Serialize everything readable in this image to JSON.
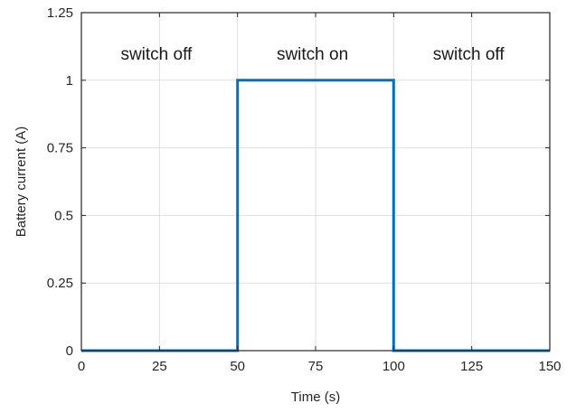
{
  "chart_data": {
    "type": "line",
    "title": "",
    "xlabel": "Time (s)",
    "ylabel": "Battery current (A)",
    "xlim": [
      0,
      150
    ],
    "ylim": [
      0,
      1.25
    ],
    "xticks": [
      0,
      25,
      50,
      75,
      100,
      125,
      150
    ],
    "yticks": [
      0,
      0.25,
      0.5,
      0.75,
      1,
      1.25
    ],
    "xtick_labels": [
      "0",
      "25",
      "50",
      "75",
      "100",
      "125",
      "150"
    ],
    "ytick_labels": [
      "0",
      "0.25",
      "0.5",
      "0.75",
      "1",
      "1.25"
    ],
    "grid": true,
    "series": [
      {
        "color": "#0072BD",
        "x": [
          0,
          50,
          50,
          100,
          100,
          150
        ],
        "y": [
          0,
          0,
          1,
          1,
          0,
          0
        ]
      }
    ],
    "annotations": [
      {
        "text": "switch off",
        "x": 24,
        "y": 1.1
      },
      {
        "text": "switch on",
        "x": 74,
        "y": 1.1
      },
      {
        "text": "switch off",
        "x": 124,
        "y": 1.1
      }
    ]
  }
}
